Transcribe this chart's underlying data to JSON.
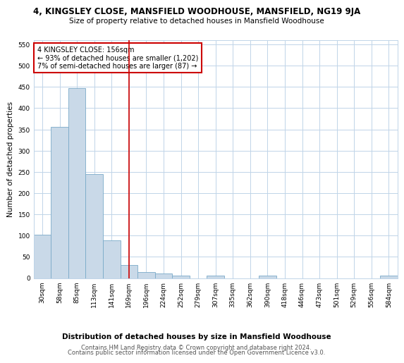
{
  "title": "4, KINGSLEY CLOSE, MANSFIELD WOODHOUSE, MANSFIELD, NG19 9JA",
  "subtitle": "Size of property relative to detached houses in Mansfield Woodhouse",
  "xlabel": "Distribution of detached houses by size in Mansfield Woodhouse",
  "ylabel": "Number of detached properties",
  "footer_line1": "Contains HM Land Registry data © Crown copyright and database right 2024.",
  "footer_line2": "Contains public sector information licensed under the Open Government Licence v3.0.",
  "annotation_line1": "4 KINGSLEY CLOSE: 156sqm",
  "annotation_line2": "← 93% of detached houses are smaller (1,202)",
  "annotation_line3": "7% of semi-detached houses are larger (87) →",
  "bar_color": "#c9d9e8",
  "bar_edge_color": "#7aaac8",
  "vline_color": "#cc0000",
  "annotation_box_edge_color": "#cc0000",
  "background_color": "#ffffff",
  "grid_color": "#c0d4e8",
  "categories": [
    "30sqm",
    "58sqm",
    "85sqm",
    "113sqm",
    "141sqm",
    "169sqm",
    "196sqm",
    "224sqm",
    "252sqm",
    "279sqm",
    "307sqm",
    "335sqm",
    "362sqm",
    "390sqm",
    "418sqm",
    "446sqm",
    "473sqm",
    "501sqm",
    "529sqm",
    "556sqm",
    "584sqm"
  ],
  "values": [
    102,
    356,
    448,
    244,
    89,
    30,
    14,
    10,
    5,
    0,
    5,
    0,
    0,
    5,
    0,
    0,
    0,
    0,
    0,
    0,
    5
  ],
  "vline_x": 5.0,
  "ylim": [
    0,
    560
  ],
  "yticks": [
    0,
    50,
    100,
    150,
    200,
    250,
    300,
    350,
    400,
    450,
    500,
    550
  ]
}
